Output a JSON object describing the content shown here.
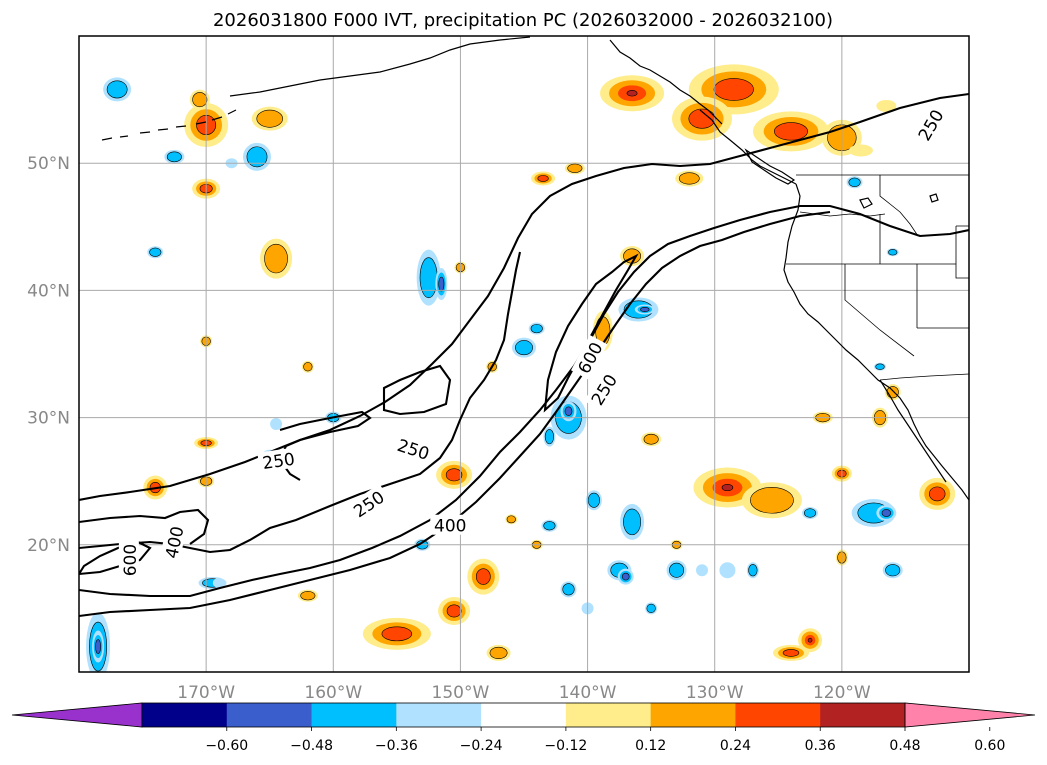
{
  "map": {
    "title": "2026031800 F000 IVT, precipitation PC (2026032000 - 2026032100)",
    "lon_range": [
      180,
      110
    ],
    "lat_range": [
      10,
      60
    ],
    "lon_ticks": [
      {
        "lon": 170,
        "label": "170°W"
      },
      {
        "lon": 160,
        "label": "160°W"
      },
      {
        "lon": 150,
        "label": "150°W"
      },
      {
        "lon": 140,
        "label": "140°W"
      },
      {
        "lon": 130,
        "label": "130°W"
      },
      {
        "lon": 120,
        "label": "120°W"
      }
    ],
    "lat_ticks": [
      {
        "lat": 50,
        "label": "50°N"
      },
      {
        "lat": 40,
        "label": "40°N"
      },
      {
        "lat": 30,
        "label": "30°N"
      },
      {
        "lat": 20,
        "label": "20°N"
      }
    ],
    "contour_labels": [
      {
        "text": "250",
        "lon": 113,
        "lat": 53,
        "rot": -60
      },
      {
        "text": "600",
        "lon": 139.8,
        "lat": 34.7,
        "rot": -62
      },
      {
        "text": "250",
        "lon": 138.7,
        "lat": 32.2,
        "rot": -58
      },
      {
        "text": "250",
        "lon": 153.7,
        "lat": 27.5,
        "rot": 18
      },
      {
        "text": "250",
        "lon": 164.3,
        "lat": 26.6,
        "rot": -8
      },
      {
        "text": "250",
        "lon": 157.2,
        "lat": 23.2,
        "rot": -34
      },
      {
        "text": "400",
        "lon": 150.8,
        "lat": 21.5,
        "rot": 0
      },
      {
        "text": "400",
        "lon": 172.5,
        "lat": 20.2,
        "rot": -78
      },
      {
        "text": "600",
        "lon": 176,
        "lat": 18.8,
        "rot": -90
      }
    ]
  },
  "colorbar": {
    "colors": [
      "#9932cc",
      "#00008b",
      "#3a5fcd",
      "#00bfff",
      "#b0e2ff",
      "#ffffff",
      "#ffec8b",
      "#ffa500",
      "#ff4500",
      "#b22222",
      "#ff82ab"
    ],
    "tick_labels": [
      "−0.60",
      "−0.48",
      "−0.36",
      "−0.24",
      "−0.12",
      "0.12",
      "0.24",
      "0.36",
      "0.48",
      "0.60"
    ]
  },
  "colors": {
    "pos_light": "#ffec8b",
    "pos_mid": "#ffa500",
    "pos_strong": "#ff4500",
    "pos_max": "#b22222",
    "neg_light": "#b0e2ff",
    "neg_mid": "#00bfff",
    "neg_strong": "#3a5fcd",
    "grid": "#aaaaaa"
  }
}
